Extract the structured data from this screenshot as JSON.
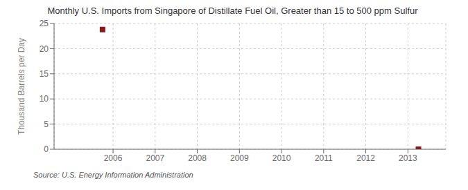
{
  "chart_data": {
    "type": "scatter",
    "title": "Monthly U.S. Imports from Singapore of Distillate Fuel Oil, Greater than 15 to 500 ppm Sulfur",
    "ylabel": "Thousand Barrels per Day",
    "annotations": [
      "Source: U.S. Energy Information Administration"
    ],
    "x": [
      2005.75,
      2013.25
    ],
    "values": [
      23.8,
      0.0
    ],
    "color": "#8b1a1a",
    "marker": "square",
    "xlim": [
      2004.6,
      2013.9
    ],
    "ylim": [
      0,
      25
    ],
    "xticks": [
      2006,
      2007,
      2008,
      2009,
      2010,
      2011,
      2012,
      2013
    ],
    "yticks": [
      0,
      5,
      10,
      15,
      20,
      25
    ],
    "grid": true
  }
}
